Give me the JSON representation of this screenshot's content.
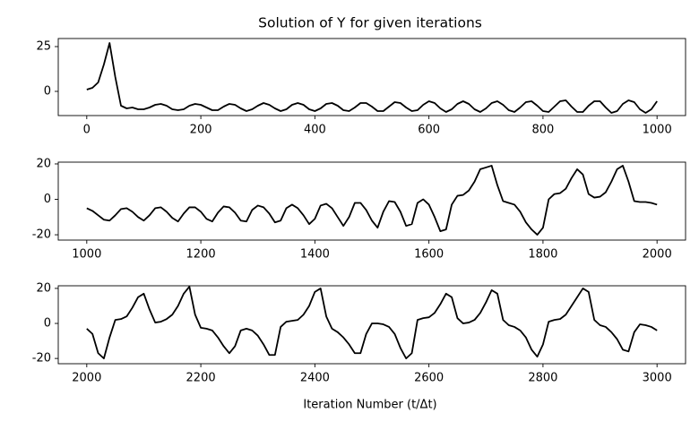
{
  "chart_data": [
    {
      "type": "line",
      "title": "Solution of Y for given iterations",
      "xlim": [
        -50,
        1050
      ],
      "ylim": [
        -13.5,
        29.5
      ],
      "xticks": [
        0,
        200,
        400,
        600,
        800,
        1000
      ],
      "yticks": [
        0,
        25
      ],
      "x": [
        0,
        10,
        20,
        30,
        40,
        50,
        60,
        70,
        80,
        90,
        100,
        110,
        120,
        130,
        140,
        150,
        160,
        170,
        180,
        190,
        200,
        210,
        220,
        230,
        240,
        250,
        260,
        270,
        280,
        290,
        300,
        310,
        320,
        330,
        340,
        350,
        360,
        370,
        380,
        390,
        400,
        410,
        420,
        430,
        440,
        450,
        460,
        470,
        480,
        490,
        500,
        510,
        520,
        530,
        540,
        550,
        560,
        570,
        580,
        590,
        600,
        610,
        620,
        630,
        640,
        650,
        660,
        670,
        680,
        690,
        700,
        710,
        720,
        730,
        740,
        750,
        760,
        770,
        780,
        790,
        800,
        810,
        820,
        830,
        840,
        850,
        860,
        870,
        880,
        890,
        900,
        910,
        920,
        930,
        940,
        950,
        960,
        970,
        980,
        990,
        1000
      ],
      "series": [
        {
          "color": "#000000",
          "values": [
            1,
            2,
            5,
            15,
            27,
            8,
            -8,
            -9.5,
            -9,
            -10,
            -10,
            -9,
            -7.5,
            -7,
            -8,
            -10,
            -10.5,
            -10,
            -8,
            -7,
            -7.5,
            -9,
            -10.5,
            -10.5,
            -8.5,
            -7,
            -7.5,
            -9.5,
            -11,
            -10,
            -8,
            -6.5,
            -7.5,
            -9.5,
            -11,
            -10,
            -7.5,
            -6.5,
            -7.5,
            -10,
            -11,
            -9.5,
            -7,
            -6.5,
            -8,
            -10.5,
            -11,
            -9,
            -6.5,
            -6.5,
            -8.5,
            -11,
            -11,
            -8.5,
            -6,
            -6.5,
            -9,
            -11,
            -10.5,
            -7.5,
            -5.5,
            -6.5,
            -9.5,
            -11.5,
            -10,
            -7,
            -5.5,
            -7,
            -10,
            -11.5,
            -9.5,
            -6.5,
            -5.5,
            -7.5,
            -10.5,
            -11.5,
            -9,
            -6,
            -5.5,
            -8,
            -11,
            -11.5,
            -8.5,
            -5.5,
            -5,
            -8.5,
            -11.5,
            -11.5,
            -8,
            -5.5,
            -5.5,
            -9,
            -12,
            -11,
            -7,
            -5,
            -6,
            -10,
            -12,
            -10,
            -5.5
          ]
        }
      ]
    },
    {
      "type": "line",
      "xlim": [
        950,
        2050
      ],
      "ylim": [
        -23,
        21
      ],
      "xticks": [
        1000,
        1200,
        1400,
        1600,
        1800,
        2000
      ],
      "yticks": [
        -20,
        0,
        20
      ],
      "x": [
        1000,
        1010,
        1020,
        1030,
        1040,
        1050,
        1060,
        1070,
        1080,
        1090,
        1100,
        1110,
        1120,
        1130,
        1140,
        1150,
        1160,
        1170,
        1180,
        1190,
        1200,
        1210,
        1220,
        1230,
        1240,
        1250,
        1260,
        1270,
        1280,
        1290,
        1300,
        1310,
        1320,
        1330,
        1340,
        1350,
        1360,
        1370,
        1380,
        1390,
        1400,
        1410,
        1420,
        1430,
        1440,
        1450,
        1460,
        1470,
        1480,
        1490,
        1500,
        1510,
        1520,
        1530,
        1540,
        1550,
        1560,
        1570,
        1580,
        1590,
        1600,
        1610,
        1620,
        1630,
        1640,
        1650,
        1660,
        1670,
        1680,
        1690,
        1700,
        1710,
        1720,
        1730,
        1740,
        1750,
        1760,
        1770,
        1780,
        1790,
        1800,
        1810,
        1820,
        1830,
        1840,
        1850,
        1860,
        1870,
        1880,
        1890,
        1900,
        1910,
        1920,
        1930,
        1940,
        1950,
        1960,
        1970,
        1980,
        1990,
        2000
      ],
      "series": [
        {
          "color": "#000000",
          "values": [
            -5,
            -6.5,
            -9,
            -11.5,
            -12,
            -9,
            -5.5,
            -5,
            -7,
            -10,
            -12,
            -9,
            -5,
            -4.5,
            -7,
            -10.5,
            -12.5,
            -8,
            -4.5,
            -4.5,
            -7,
            -11,
            -12.5,
            -7.5,
            -4,
            -4.5,
            -7.5,
            -12,
            -12.5,
            -6,
            -3.5,
            -4.5,
            -8,
            -13,
            -12,
            -5,
            -3,
            -5,
            -9,
            -14,
            -11,
            -3.5,
            -2.5,
            -5,
            -10,
            -15,
            -10,
            -2,
            -2,
            -6,
            -12,
            -16,
            -7,
            -1,
            -1.5,
            -7,
            -15,
            -14,
            -2,
            0,
            -3,
            -10,
            -18,
            -17,
            -3,
            2,
            2.5,
            5,
            10,
            17,
            18,
            19,
            8,
            -1,
            -2,
            -3,
            -7,
            -13,
            -17,
            -20,
            -16,
            0,
            3,
            3.5,
            6,
            12,
            17,
            14,
            3,
            1,
            1.5,
            4,
            10,
            17,
            19,
            10,
            -1,
            -1.5,
            -1.5,
            -2,
            -3
          ]
        }
      ]
    },
    {
      "type": "line",
      "xlabel": "Iteration Number (t/Δt)",
      "xlim": [
        1950,
        3050
      ],
      "ylim": [
        -23,
        21.5
      ],
      "xticks": [
        2000,
        2200,
        2400,
        2600,
        2800,
        3000
      ],
      "yticks": [
        -20,
        0,
        20
      ],
      "x": [
        2000,
        2010,
        2020,
        2030,
        2040,
        2050,
        2060,
        2070,
        2080,
        2090,
        2100,
        2110,
        2120,
        2130,
        2140,
        2150,
        2160,
        2170,
        2180,
        2190,
        2200,
        2210,
        2220,
        2230,
        2240,
        2250,
        2260,
        2270,
        2280,
        2290,
        2300,
        2310,
        2320,
        2330,
        2340,
        2350,
        2360,
        2370,
        2380,
        2390,
        2400,
        2410,
        2420,
        2430,
        2440,
        2450,
        2460,
        2470,
        2480,
        2490,
        2500,
        2510,
        2520,
        2530,
        2540,
        2550,
        2560,
        2570,
        2580,
        2590,
        2600,
        2610,
        2620,
        2630,
        2640,
        2650,
        2660,
        2670,
        2680,
        2690,
        2700,
        2710,
        2720,
        2730,
        2740,
        2750,
        2760,
        2770,
        2780,
        2790,
        2800,
        2810,
        2820,
        2830,
        2840,
        2850,
        2860,
        2870,
        2880,
        2890,
        2900,
        2910,
        2920,
        2930,
        2940,
        2950,
        2960,
        2970,
        2980,
        2990,
        3000
      ],
      "series": [
        {
          "color": "#000000",
          "values": [
            -3,
            -6,
            -17,
            -20,
            -8,
            2,
            2.5,
            4,
            9,
            15,
            17,
            8,
            0.5,
            1,
            2.5,
            5,
            10,
            17,
            21,
            5,
            -2.5,
            -3,
            -4,
            -8,
            -13,
            -17,
            -13,
            -4,
            -3,
            -4,
            -7,
            -12,
            -18,
            -18,
            -2,
            1,
            1.5,
            2,
            5,
            10,
            18,
            20,
            4,
            -3,
            -5,
            -8,
            -12,
            -17,
            -17,
            -6,
            0,
            0,
            -0.5,
            -2,
            -6,
            -14,
            -20,
            -17,
            2,
            3,
            3.5,
            6,
            11,
            17,
            15,
            3,
            0,
            0.5,
            2,
            6,
            12,
            19,
            17,
            2,
            -1,
            -2,
            -4,
            -8,
            -15,
            -19,
            -12,
            1,
            2,
            2.5,
            5,
            10,
            15,
            20,
            18,
            2,
            -1,
            -2,
            -5,
            -9,
            -15,
            -16,
            -5,
            -0.5,
            -1,
            -2,
            -4
          ]
        }
      ]
    }
  ]
}
